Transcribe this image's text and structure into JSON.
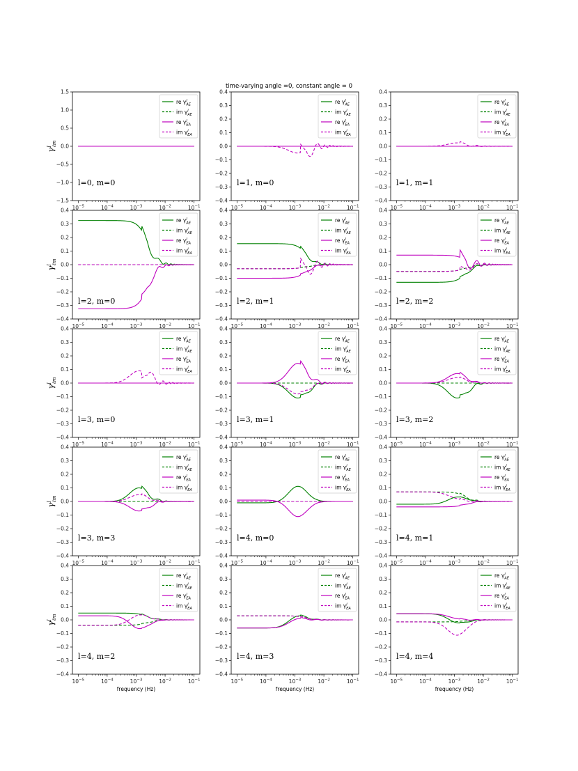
{
  "figure": {
    "title": "time-varying angle =0, constant angle = 0",
    "xlabel": "frequency (Hz)",
    "ylabel": "γ^I_ℓm"
  },
  "legend": {
    "entries": [
      {
        "prefix": "re",
        "sub": "AE",
        "style": "solid",
        "color": "#008000"
      },
      {
        "prefix": "im",
        "sub": "AE",
        "style": "dashed",
        "color": "#008000"
      },
      {
        "prefix": "re",
        "sub": "EA",
        "style": "solid",
        "color": "#bf00bf"
      },
      {
        "prefix": "im",
        "sub": "EA",
        "style": "dashed",
        "color": "#bf00bf"
      }
    ]
  },
  "colors": {
    "green": "#008000",
    "magenta": "#bf00bf"
  },
  "chart_data": [
    {
      "type": "line",
      "label": "l=0, m=0",
      "xscale": "log",
      "xlim": [
        1e-05,
        0.1
      ],
      "ylim": [
        -1.5,
        1.5
      ],
      "yticks": [
        "1.5",
        "1.0",
        "0.5",
        "0.0",
        "−0.5",
        "−1.0",
        "−1.5"
      ],
      "re_AE": {
        "low": 0,
        "shape": "flat"
      },
      "im_AE": {
        "low": 0
      },
      "re_EA": {
        "low": 0
      },
      "im_EA": {
        "low": 0
      }
    },
    {
      "type": "line",
      "label": "l=1, m=0",
      "xscale": "log",
      "xlim": [
        1e-05,
        0.1
      ],
      "ylim": [
        -0.4,
        0.4
      ],
      "yticks": [
        "0.4",
        "0.3",
        "0.2",
        "0.1",
        "0.0",
        "−0.1",
        "−0.2",
        "−0.3",
        "−0.4"
      ],
      "re_AE": {
        "low": 0
      },
      "im_AE": {
        "low": 0
      },
      "re_EA": {
        "low": 0
      },
      "im_EA": {
        "low": 0,
        "bump": -0.05,
        "peak": 0.09
      }
    },
    {
      "type": "line",
      "label": "l=1, m=1",
      "xscale": "log",
      "xlim": [
        1e-05,
        0.1
      ],
      "ylim": [
        -0.4,
        0.4
      ],
      "yticks": [
        "0.4",
        "0.3",
        "0.2",
        "0.1",
        "0.0",
        "−0.1",
        "−0.2",
        "−0.3",
        "−0.4"
      ],
      "re_AE": {
        "low": 0
      },
      "im_AE": {
        "low": 0
      },
      "re_EA": {
        "low": 0
      },
      "im_EA": {
        "low": 0,
        "bump": 0.025,
        "peak": 0.015
      }
    },
    {
      "type": "line",
      "label": "l=2, m=0",
      "xscale": "log",
      "xlim": [
        1e-05,
        0.1
      ],
      "ylim": [
        -0.4,
        0.4
      ],
      "yticks": [
        "0.4",
        "0.3",
        "0.2",
        "0.1",
        "0.0",
        "−0.1",
        "−0.2",
        "−0.3",
        "−0.4"
      ],
      "re_AE": {
        "low": 0.325
      },
      "im_AE": {
        "low": 0
      },
      "re_EA": {
        "low": -0.325
      },
      "im_EA": {
        "low": 0
      }
    },
    {
      "type": "line",
      "label": "l=2, m=1",
      "xscale": "log",
      "xlim": [
        1e-05,
        0.1
      ],
      "ylim": [
        -0.4,
        0.4
      ],
      "yticks": [
        "0.4",
        "0.3",
        "0.2",
        "0.1",
        "0.0",
        "−0.1",
        "−0.2",
        "−0.3",
        "−0.4"
      ],
      "re_AE": {
        "low": 0.155
      },
      "im_AE": {
        "low": -0.03
      },
      "re_EA": {
        "low": -0.1
      },
      "im_EA": {
        "low": -0.03,
        "peak": 0.1
      }
    },
    {
      "type": "line",
      "label": "l=2, m=2",
      "xscale": "log",
      "xlim": [
        1e-05,
        0.1
      ],
      "ylim": [
        -0.4,
        0.4
      ],
      "yticks": [
        "0.4",
        "0.3",
        "0.2",
        "0.1",
        "0.0",
        "−0.1",
        "−0.2",
        "−0.3",
        "−0.4"
      ],
      "re_AE": {
        "low": -0.13
      },
      "im_AE": {
        "low": -0.05
      },
      "re_EA": {
        "low": 0.07,
        "peak": 0.08
      },
      "im_EA": {
        "low": -0.05,
        "peak": 0.04
      }
    },
    {
      "type": "line",
      "label": "l=3, m=0",
      "xscale": "log",
      "xlim": [
        1e-05,
        0.1
      ],
      "ylim": [
        -0.4,
        0.4
      ],
      "yticks": [
        "0.4",
        "0.3",
        "0.2",
        "0.1",
        "0.0",
        "−0.1",
        "−0.2",
        "−0.3",
        "−0.4"
      ],
      "re_AE": {
        "low": 0
      },
      "im_AE": {
        "low": 0
      },
      "re_EA": {
        "low": 0
      },
      "im_EA": {
        "low": 0,
        "bump": 0.09,
        "peak": -0.07
      }
    },
    {
      "type": "line",
      "label": "l=3, m=1",
      "xscale": "log",
      "xlim": [
        1e-05,
        0.1
      ],
      "ylim": [
        -0.4,
        0.4
      ],
      "yticks": [
        "0.4",
        "0.3",
        "0.2",
        "0.1",
        "0.0",
        "−0.1",
        "−0.2",
        "−0.3",
        "−0.4"
      ],
      "re_AE": {
        "low": 0,
        "bump": -0.11
      },
      "im_AE": {
        "low": 0
      },
      "re_EA": {
        "low": 0,
        "bump": 0.145
      },
      "im_EA": {
        "low": 0,
        "bump": -0.08
      }
    },
    {
      "type": "line",
      "label": "l=3, m=2",
      "xscale": "log",
      "xlim": [
        1e-05,
        0.1
      ],
      "ylim": [
        -0.4,
        0.4
      ],
      "yticks": [
        "0.4",
        "0.3",
        "0.2",
        "0.1",
        "0.0",
        "−0.1",
        "−0.2",
        "−0.3",
        "−0.4"
      ],
      "re_AE": {
        "low": 0,
        "bump": -0.11
      },
      "im_AE": {
        "low": 0
      },
      "re_EA": {
        "low": 0,
        "bump": 0.07
      },
      "im_EA": {
        "low": 0,
        "bump": 0.04
      }
    },
    {
      "type": "line",
      "label": "l=3, m=3",
      "xscale": "log",
      "xlim": [
        1e-05,
        0.1
      ],
      "ylim": [
        -0.4,
        0.4
      ],
      "yticks": [
        "0.4",
        "0.3",
        "0.2",
        "0.1",
        "0.0",
        "−0.1",
        "−0.2",
        "−0.3",
        "−0.4"
      ],
      "re_AE": {
        "low": 0,
        "bump": 0.1
      },
      "im_AE": {
        "low": 0
      },
      "re_EA": {
        "low": 0,
        "bump": -0.07
      },
      "im_EA": {
        "low": 0,
        "bump": 0.05
      }
    },
    {
      "type": "line",
      "label": "l=4, m=0",
      "xscale": "log",
      "xlim": [
        1e-05,
        0.1
      ],
      "ylim": [
        -0.4,
        0.4
      ],
      "yticks": [
        "0.4",
        "0.3",
        "0.2",
        "0.1",
        "0.0",
        "−0.1",
        "−0.2",
        "−0.3",
        "−0.4"
      ],
      "re_AE": {
        "low": -0.01,
        "bump": 0.12
      },
      "im_AE": {
        "low": 0
      },
      "re_EA": {
        "low": 0.01,
        "bump": -0.12
      },
      "im_EA": {
        "low": 0
      }
    },
    {
      "type": "line",
      "label": "l=4, m=1",
      "xscale": "log",
      "xlim": [
        1e-05,
        0.1
      ],
      "ylim": [
        -0.4,
        0.4
      ],
      "yticks": [
        "0.4",
        "0.3",
        "0.2",
        "0.1",
        "0.0",
        "−0.1",
        "−0.2",
        "−0.3",
        "−0.4"
      ],
      "re_AE": {
        "low": -0.02,
        "bump": 0.05
      },
      "im_AE": {
        "low": 0.07
      },
      "re_EA": {
        "low": -0.04
      },
      "im_EA": {
        "low": 0.07,
        "bump": -0.04
      }
    },
    {
      "type": "line",
      "label": "l=4, m=2",
      "xscale": "log",
      "xlim": [
        1e-05,
        0.1
      ],
      "ylim": [
        -0.4,
        0.4
      ],
      "yticks": [
        "0.4",
        "0.3",
        "0.2",
        "0.1",
        "0.0",
        "−0.1",
        "−0.2",
        "−0.3",
        "−0.4"
      ],
      "re_AE": {
        "low": 0.05
      },
      "im_AE": {
        "low": -0.04
      },
      "re_EA": {
        "low": 0.03,
        "bump": -0.09
      },
      "im_EA": {
        "low": -0.04,
        "bump": 0.07
      }
    },
    {
      "type": "line",
      "label": "l=4, m=3",
      "xscale": "log",
      "xlim": [
        1e-05,
        0.1
      ],
      "ylim": [
        -0.4,
        0.4
      ],
      "yticks": [
        "0.4",
        "0.3",
        "0.2",
        "0.1",
        "0.0",
        "−0.1",
        "−0.2",
        "−0.3",
        "−0.4"
      ],
      "re_AE": {
        "low": -0.06,
        "bump": 0.08
      },
      "im_AE": {
        "low": 0.03
      },
      "re_EA": {
        "low": -0.06,
        "bump": 0.06
      },
      "im_EA": {
        "low": 0.03
      }
    },
    {
      "type": "line",
      "label": "l=4, m=4",
      "xscale": "log",
      "xlim": [
        1e-05,
        0.1
      ],
      "ylim": [
        -0.4,
        0.4
      ],
      "yticks": [
        "0.4",
        "0.3",
        "0.2",
        "0.1",
        "0.0",
        "−0.1",
        "−0.2",
        "−0.3",
        "−0.4"
      ],
      "re_AE": {
        "low": 0.045,
        "bump": -0.06
      },
      "im_AE": {
        "low": -0.015
      },
      "re_EA": {
        "low": 0.045,
        "bump": -0.03
      },
      "im_EA": {
        "low": -0.015,
        "bump": -0.1
      }
    }
  ]
}
